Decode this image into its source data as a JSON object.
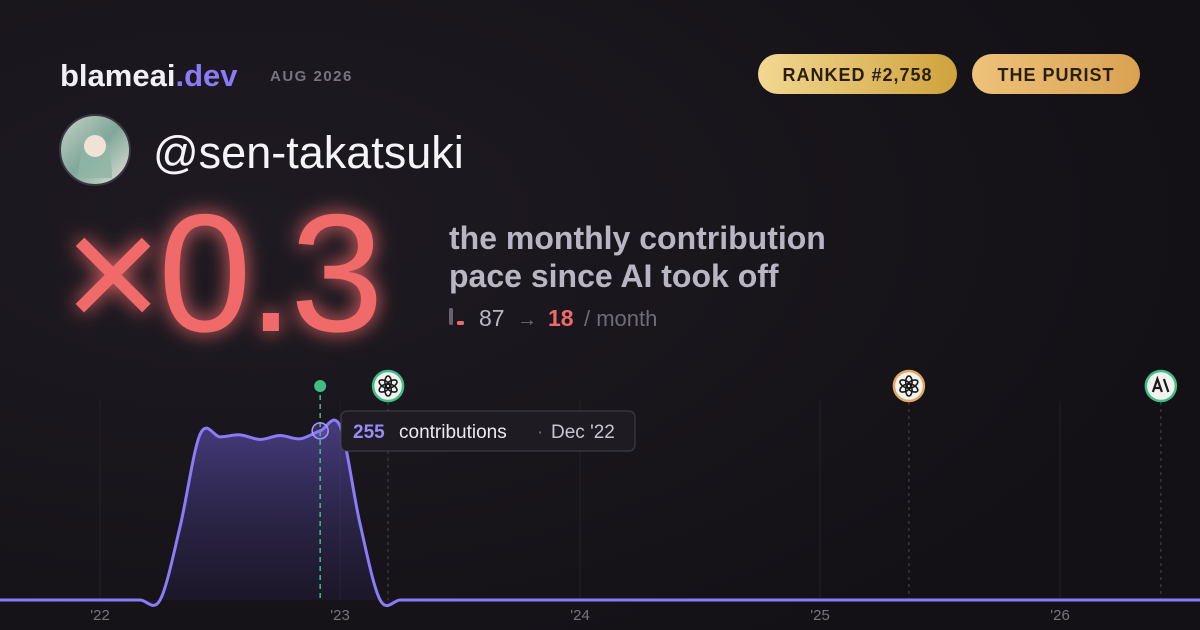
{
  "header": {
    "brand": "blameai",
    "brand_tld": ".dev",
    "period": "AUG 2026",
    "badges": [
      "RANKED #2,758",
      "THE PURIST"
    ]
  },
  "profile": {
    "username": "@sen-takatsuki"
  },
  "summary": {
    "multiplier": "×0.3",
    "description": [
      "the monthly contribution",
      "pace since AI took off"
    ],
    "before": 87,
    "arrow": "→",
    "after": 18,
    "unit": "/ month"
  },
  "chart_data": {
    "type": "area",
    "x": [
      2021.583,
      2021.667,
      2021.75,
      2021.833,
      2021.917,
      2022,
      2022.083,
      2022.167,
      2022.25,
      2022.333,
      2022.417,
      2022.5,
      2022.583,
      2022.667,
      2022.75,
      2022.833,
      2022.917,
      2023,
      2023.083,
      2023.167,
      2023.25,
      2023.333,
      2023.417,
      2023.5,
      2023.583,
      2023.667,
      2023.75,
      2023.833,
      2023.917,
      2024,
      2024.083,
      2024.167,
      2024.25,
      2024.333,
      2024.417,
      2024.5,
      2024.583,
      2024.667,
      2024.75,
      2024.833,
      2024.917,
      2025,
      2025.083,
      2025.167,
      2025.25,
      2025.333,
      2025.417,
      2025.5,
      2025.583,
      2025.667,
      2025.75,
      2025.833,
      2025.917,
      2026,
      2026.083,
      2026.167,
      2026.25,
      2026.333,
      2026.417,
      2026.5,
      2026.583
    ],
    "values": [
      0,
      0,
      0,
      0,
      0,
      0,
      0,
      0,
      0,
      110,
      250,
      246,
      249,
      242,
      248,
      243,
      255,
      262,
      115,
      0,
      0,
      0,
      0,
      0,
      0,
      0,
      0,
      0,
      0,
      0,
      0,
      0,
      0,
      0,
      0,
      0,
      0,
      0,
      0,
      0,
      0,
      0,
      0,
      0,
      0,
      0,
      0,
      0,
      0,
      0,
      0,
      0,
      0,
      0,
      0,
      0,
      0,
      0,
      0,
      0,
      0
    ],
    "color": "#8b7cf6",
    "xlim": [
      2021.583,
      2026.583
    ],
    "ylim": [
      0,
      300
    ],
    "xticks": [
      {
        "value": 2022,
        "label": "'22"
      },
      {
        "value": 2023,
        "label": "'23"
      },
      {
        "value": 2024,
        "label": "'24"
      },
      {
        "value": 2025,
        "label": "'25"
      },
      {
        "value": 2026,
        "label": "'26"
      }
    ],
    "grid": true,
    "events": [
      {
        "x": 2023.2,
        "color": "#3fbf86"
      },
      {
        "x": 2025.37,
        "color": "#e0a860"
      },
      {
        "x": 2026.42,
        "color": "#3fbf86"
      }
    ],
    "tooltip": {
      "unit": "contributions",
      "separator": "·",
      "label": "Dec '22"
    }
  }
}
